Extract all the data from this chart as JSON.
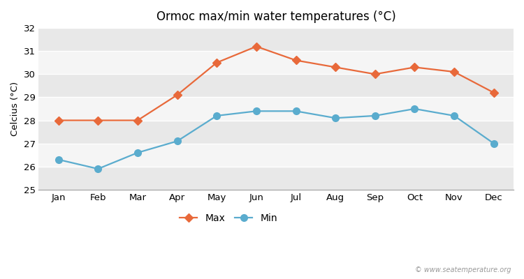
{
  "title": "Ormoc max/min water temperatures (°C)",
  "ylabel": "Celcius (°C)",
  "months": [
    "Jan",
    "Feb",
    "Mar",
    "Apr",
    "May",
    "Jun",
    "Jul",
    "Aug",
    "Sep",
    "Oct",
    "Nov",
    "Dec"
  ],
  "max_temps": [
    28.0,
    28.0,
    28.0,
    29.1,
    30.5,
    31.2,
    30.6,
    30.3,
    30.0,
    30.3,
    30.1,
    29.2
  ],
  "min_temps": [
    26.3,
    25.9,
    26.6,
    27.1,
    28.2,
    28.4,
    28.4,
    28.1,
    28.2,
    28.5,
    28.2,
    27.0
  ],
  "max_color": "#e8693a",
  "min_color": "#5aacce",
  "ylim": [
    25,
    32
  ],
  "yticks": [
    25,
    26,
    27,
    28,
    29,
    30,
    31,
    32
  ],
  "bg_color": "#ffffff",
  "plot_bg_color": "#f0f0f0",
  "band_light": "#f5f5f5",
  "band_dark": "#e8e8e8",
  "grid_color": "#ffffff",
  "legend_labels": [
    "Max",
    "Min"
  ],
  "watermark": "© www.seatemperature.org",
  "max_marker": "D",
  "min_marker": "o",
  "line_width": 1.6,
  "max_marker_size": 6,
  "min_marker_size": 7
}
